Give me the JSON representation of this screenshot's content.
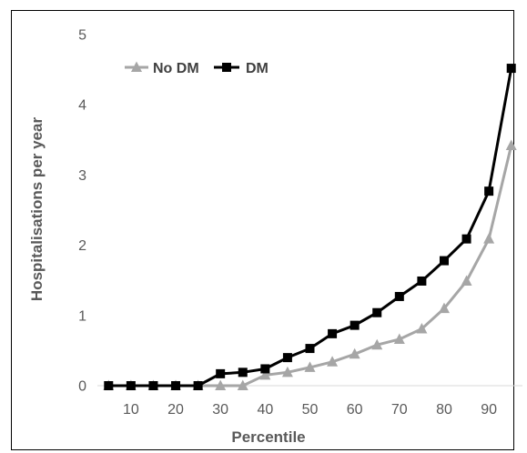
{
  "chart_data": {
    "type": "line",
    "xlabel": "Percentile",
    "ylabel": "Hospitalisations per year",
    "xlim": [
      2.5,
      97.5
    ],
    "ylim": [
      0,
      5
    ],
    "xticks": [
      "10",
      "20",
      "30",
      "40",
      "50",
      "60",
      "70",
      "80",
      "90"
    ],
    "yticks": [
      "0",
      "1",
      "2",
      "3",
      "4",
      "5"
    ],
    "grid": false,
    "legend_position": "top-left",
    "x": [
      5,
      10,
      15,
      20,
      25,
      30,
      35,
      40,
      45,
      50,
      55,
      60,
      65,
      70,
      75,
      80,
      85,
      90,
      95
    ],
    "series": [
      {
        "name": "No DM",
        "marker": "triangle",
        "color": "#a6a6a6",
        "values": [
          0,
          0,
          0,
          0,
          0,
          0,
          0,
          0.15,
          0.19,
          0.26,
          0.34,
          0.45,
          0.58,
          0.66,
          0.81,
          1.1,
          1.49,
          2.09,
          3.42
        ]
      },
      {
        "name": "DM",
        "marker": "square",
        "color": "#000000",
        "values": [
          0,
          0,
          0,
          0,
          0,
          0.17,
          0.19,
          0.24,
          0.4,
          0.53,
          0.74,
          0.86,
          1.04,
          1.27,
          1.49,
          1.78,
          2.09,
          2.77,
          4.52
        ]
      }
    ]
  }
}
